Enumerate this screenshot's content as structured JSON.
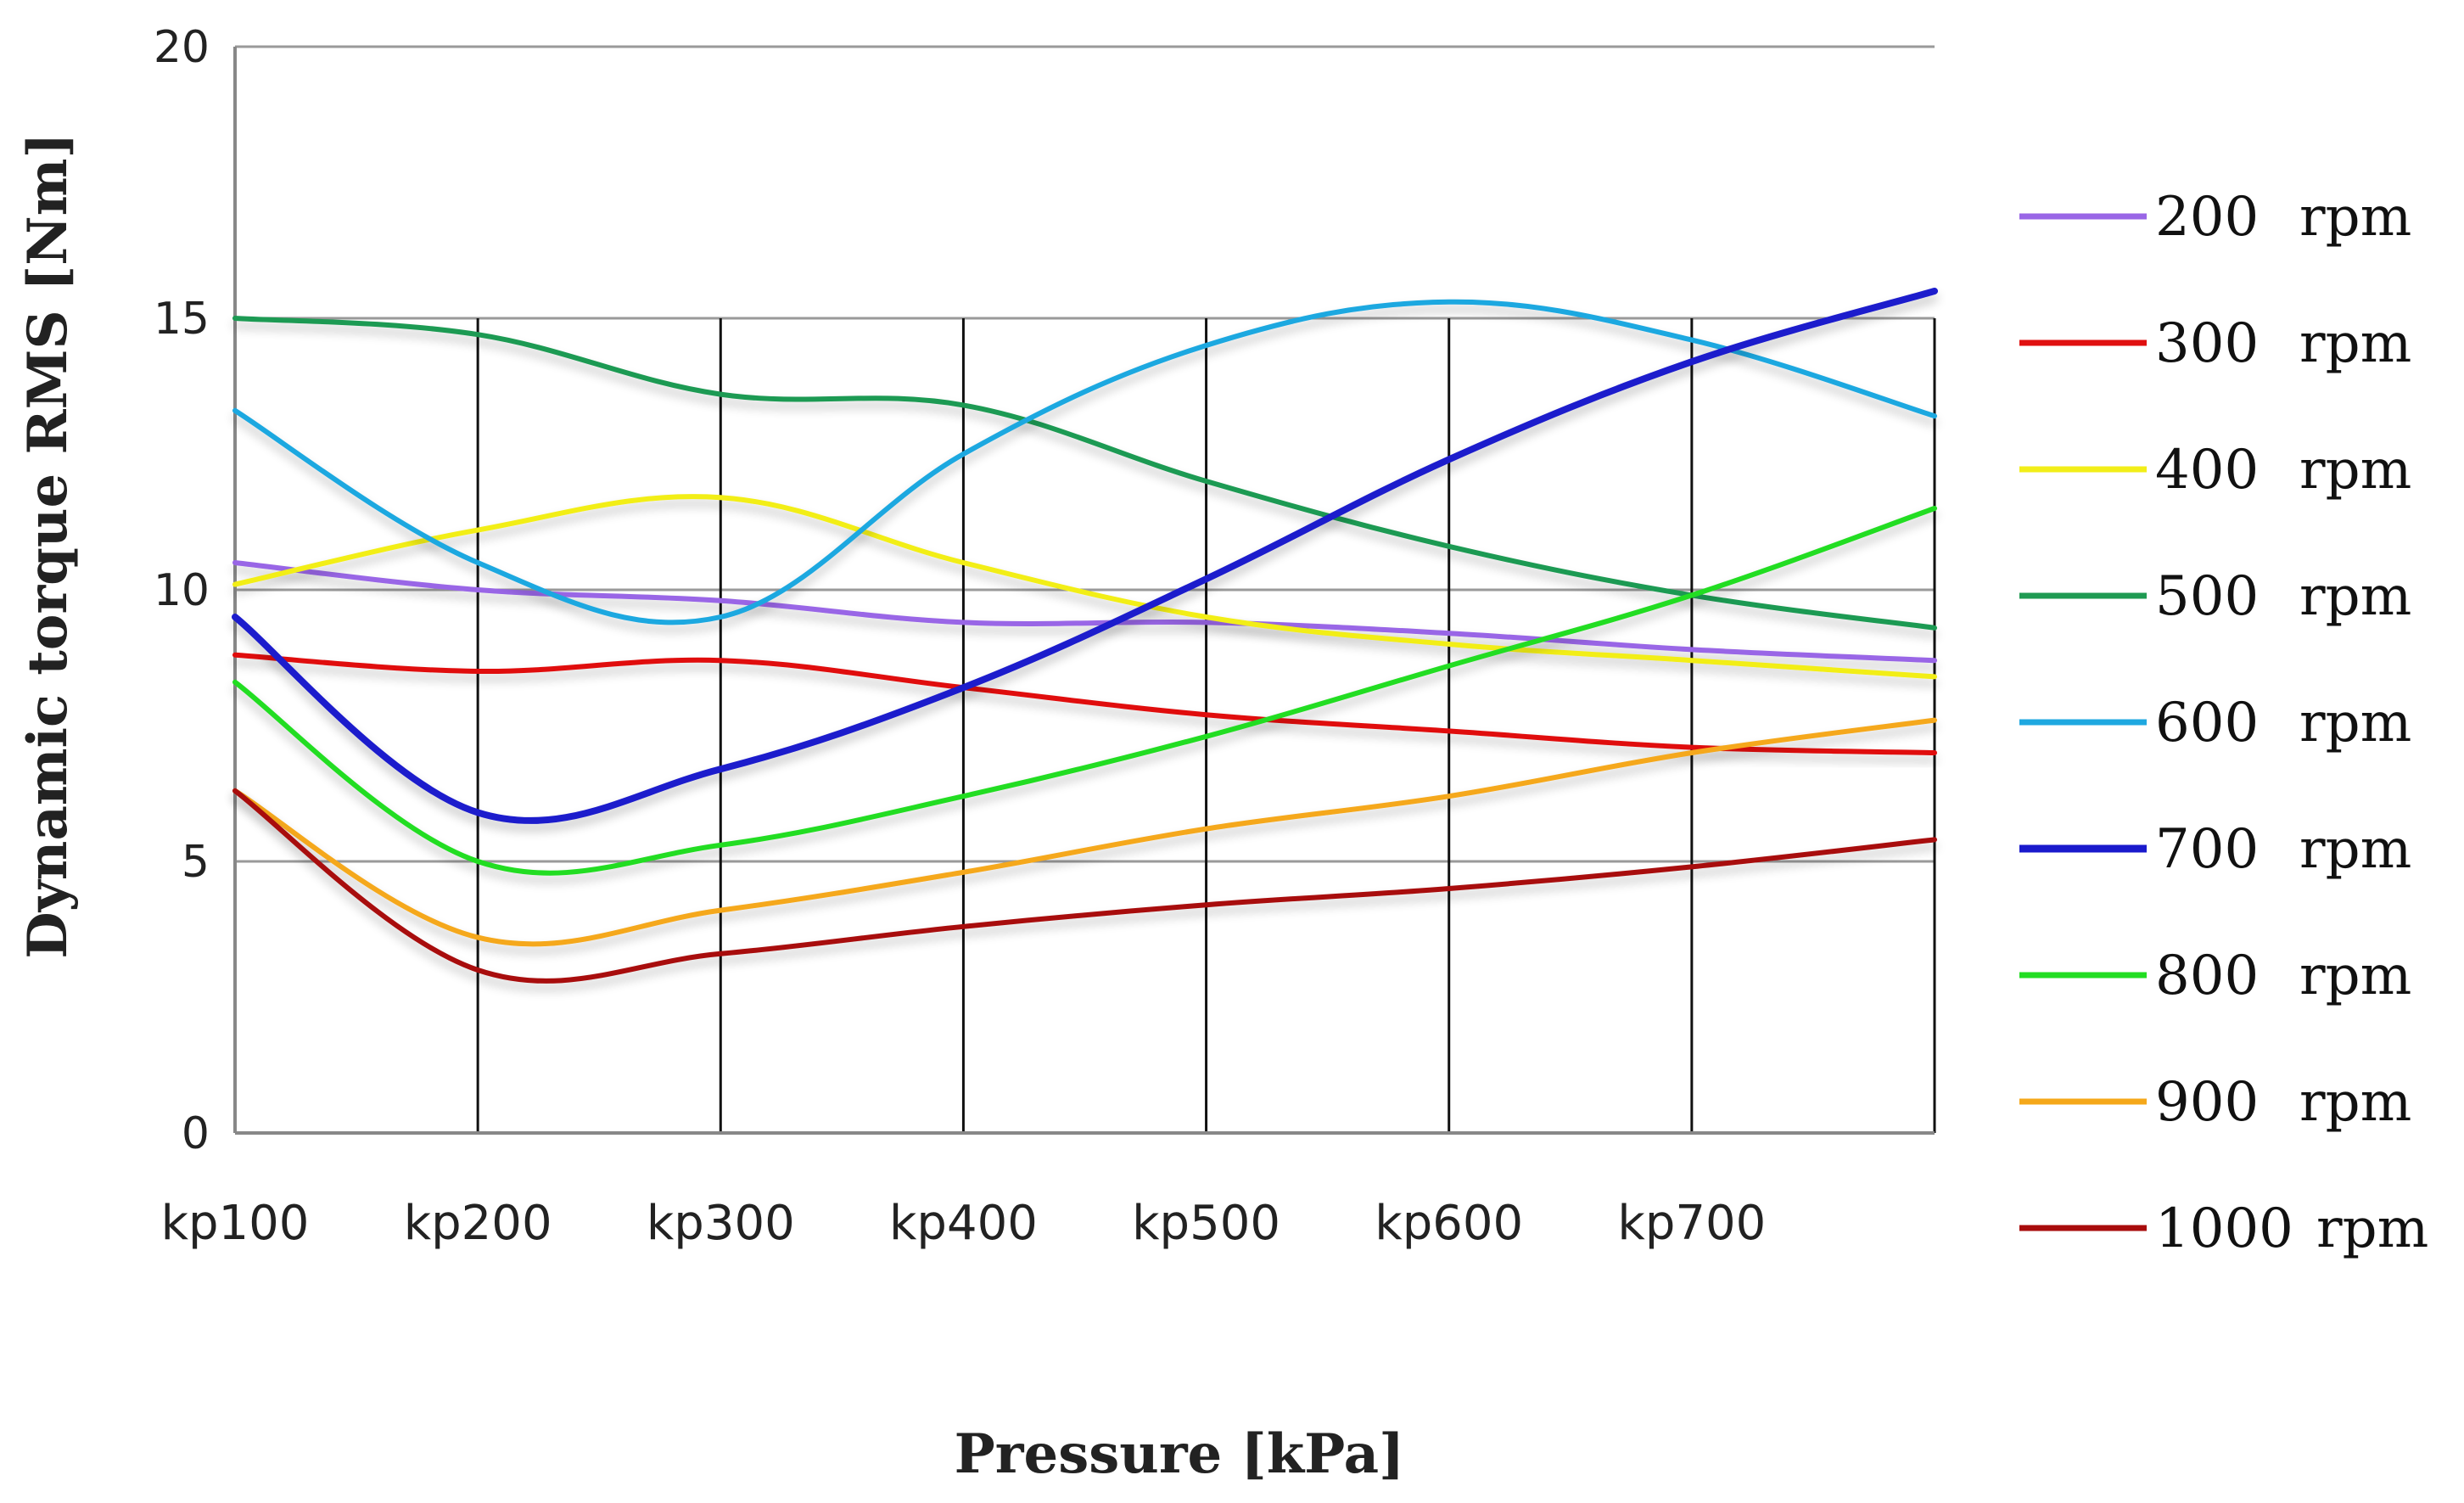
{
  "chart_data": {
    "type": "line",
    "title": "",
    "xlabel": "Pressure [kPa]",
    "ylabel": "Dynamic torque RMS [Nm]",
    "categories": [
      "kp100",
      "kp200",
      "kp300",
      "kp400",
      "kp500",
      "kp600",
      "kp700",
      ""
    ],
    "ylim": [
      0,
      20
    ],
    "yticks": [
      0,
      5,
      10,
      15,
      20
    ],
    "grid": true,
    "legend_position": "right",
    "series": [
      {
        "name": "200",
        "unit": "rpm",
        "color": "#9966e6",
        "values": [
          10.5,
          10.0,
          9.8,
          9.4,
          9.4,
          9.2,
          8.9,
          8.7
        ]
      },
      {
        "name": "300",
        "unit": "rpm",
        "color": "#e01010",
        "values": [
          8.8,
          8.5,
          8.7,
          8.2,
          7.7,
          7.4,
          7.1,
          7.0
        ]
      },
      {
        "name": "400",
        "unit": "rpm",
        "color": "#f2ee18",
        "values": [
          10.1,
          11.1,
          11.7,
          10.5,
          9.5,
          9.0,
          8.7,
          8.4
        ]
      },
      {
        "name": "500",
        "unit": "rpm",
        "color": "#1f9a52",
        "values": [
          15.0,
          14.7,
          13.6,
          13.4,
          12.0,
          10.8,
          9.9,
          9.3
        ]
      },
      {
        "name": "600",
        "unit": "rpm",
        "color": "#1fa8e0",
        "values": [
          13.3,
          10.5,
          9.5,
          12.5,
          14.5,
          15.3,
          14.6,
          13.2
        ]
      },
      {
        "name": "700",
        "unit": "rpm",
        "color": "#1a1acc",
        "values": [
          9.5,
          5.9,
          6.7,
          8.2,
          10.2,
          12.4,
          14.2,
          15.5
        ]
      },
      {
        "name": "800",
        "unit": "rpm",
        "color": "#22dd22",
        "values": [
          8.3,
          5.0,
          5.3,
          6.2,
          7.3,
          8.6,
          9.9,
          11.5
        ]
      },
      {
        "name": "900",
        "unit": "rpm",
        "color": "#f5a81a",
        "values": [
          6.3,
          3.6,
          4.1,
          4.8,
          5.6,
          6.2,
          7.0,
          7.6
        ]
      },
      {
        "name": "1000",
        "unit": "rpm",
        "color": "#a80c0c",
        "values": [
          6.3,
          3.0,
          3.3,
          3.8,
          4.2,
          4.5,
          4.9,
          5.4
        ]
      }
    ]
  }
}
